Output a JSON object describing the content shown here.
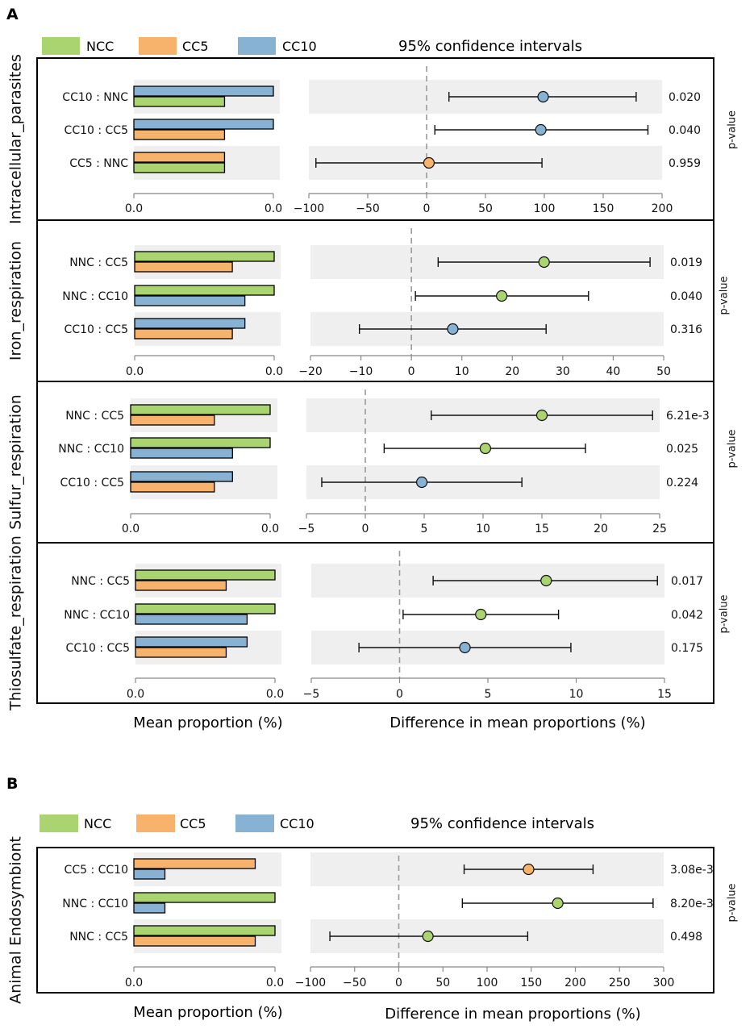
{
  "figure": {
    "panels": [
      {
        "label": "A",
        "ci_title": "95% confidence intervals",
        "xlabel_left": "Mean proportion (%)",
        "xlabel_right": "Difference in mean proportions (%)",
        "pvalue_label": "p-value"
      },
      {
        "label": "B",
        "ci_title": "95% confidence intervals",
        "xlabel_left": "Mean proportion (%)",
        "xlabel_right": "Difference in mean proportions (%)",
        "pvalue_label": "p-value"
      }
    ],
    "legend": [
      {
        "name": "NCC",
        "color": "#a9d46f"
      },
      {
        "name": "CC5",
        "color": "#f7b26b"
      },
      {
        "name": "CC10",
        "color": "#88b2d4"
      }
    ],
    "colors": {
      "NNC": "#a9d46f",
      "CC5": "#f7b26b",
      "CC10": "#88b2d4",
      "band": "#efefef",
      "zero_line": "#9a9a9a"
    }
  },
  "chart_data": [
    {
      "type": "bar+errorbar",
      "title": "Intracellular_parasites",
      "xlabel": "Difference in mean proportions (%)",
      "xlim": [
        -100,
        200
      ],
      "ticks": [
        "-100",
        "-50",
        "0",
        "50",
        "100",
        "150",
        "200"
      ],
      "bar_xticks": [
        "0.0",
        "0.0"
      ],
      "rows": [
        {
          "label": "CC10 : NNC",
          "g1": "CC10",
          "g2": "NNC",
          "bar1": 1.0,
          "bar2": 0.65,
          "diff": 99,
          "ci": [
            19,
            178
          ],
          "p": "0.020",
          "dot": "CC10",
          "band": true
        },
        {
          "label": "CC10 : CC5",
          "g1": "CC10",
          "g2": "CC5",
          "bar1": 1.0,
          "bar2": 0.65,
          "diff": 97,
          "ci": [
            7,
            188
          ],
          "p": "0.040",
          "dot": "CC10",
          "band": false
        },
        {
          "label": "CC5 : NNC",
          "g1": "CC5",
          "g2": "NNC",
          "bar1": 0.65,
          "bar2": 0.65,
          "diff": 2,
          "ci": [
            -94,
            98
          ],
          "p": "0.959",
          "dot": "CC5",
          "band": true
        }
      ]
    },
    {
      "type": "bar+errorbar",
      "title": "Iron_respiration",
      "xlabel": "Difference in mean proportions (%)",
      "xlim": [
        -20,
        50
      ],
      "ticks": [
        "-20",
        "-10",
        "0",
        "10",
        "20",
        "30",
        "40",
        "50"
      ],
      "bar_xticks": [
        "0.0",
        "0.0"
      ],
      "rows": [
        {
          "label": "NNC : CC5",
          "g1": "NNC",
          "g2": "CC5",
          "bar1": 1.0,
          "bar2": 0.7,
          "diff": 26.3,
          "ci": [
            5.3,
            47.3
          ],
          "p": "0.019",
          "dot": "NNC",
          "band": true
        },
        {
          "label": "NNC : CC10",
          "g1": "NNC",
          "g2": "CC10",
          "bar1": 1.0,
          "bar2": 0.79,
          "diff": 17.9,
          "ci": [
            0.8,
            35.1
          ],
          "p": "0.040",
          "dot": "NNC",
          "band": false
        },
        {
          "label": "CC10 : CC5",
          "g1": "CC10",
          "g2": "CC5",
          "bar1": 0.79,
          "bar2": 0.7,
          "diff": 8.2,
          "ci": [
            -10.3,
            26.7
          ],
          "p": "0.316",
          "dot": "CC10",
          "band": true
        }
      ]
    },
    {
      "type": "bar+errorbar",
      "title": "Sulfur_respiration",
      "xlabel": "Difference in mean proportions (%)",
      "xlim": [
        -5,
        25
      ],
      "ticks": [
        "-5",
        "0",
        "5",
        "10",
        "15",
        "20",
        "25"
      ],
      "bar_xticks": [
        "0.0",
        "0.0"
      ],
      "rows": [
        {
          "label": "NNC : CC5",
          "g1": "NNC",
          "g2": "CC5",
          "bar1": 1.0,
          "bar2": 0.6,
          "diff": 15.0,
          "ci": [
            5.6,
            24.4
          ],
          "p": "6.21e-3",
          "dot": "NNC",
          "band": true
        },
        {
          "label": "NNC : CC10",
          "g1": "NNC",
          "g2": "CC10",
          "bar1": 1.0,
          "bar2": 0.73,
          "diff": 10.2,
          "ci": [
            1.6,
            18.7
          ],
          "p": "0.025",
          "dot": "NNC",
          "band": false
        },
        {
          "label": "CC10 : CC5",
          "g1": "CC10",
          "g2": "CC5",
          "bar1": 0.73,
          "bar2": 0.6,
          "diff": 4.8,
          "ci": [
            -3.7,
            13.3
          ],
          "p": "0.224",
          "dot": "CC10",
          "band": true
        }
      ]
    },
    {
      "type": "bar+errorbar",
      "title": "Thiosulfate_respiration",
      "xlabel": "Difference in mean proportions (%)",
      "xlim": [
        -5,
        15
      ],
      "ticks": [
        "-5",
        "0",
        "5",
        "10",
        "15"
      ],
      "bar_xticks": [
        "0.0",
        "0.0"
      ],
      "rows": [
        {
          "label": "NNC : CC5",
          "g1": "NNC",
          "g2": "CC5",
          "bar1": 1.0,
          "bar2": 0.65,
          "diff": 8.3,
          "ci": [
            1.9,
            14.6
          ],
          "p": "0.017",
          "dot": "NNC",
          "band": true
        },
        {
          "label": "NNC : CC10",
          "g1": "NNC",
          "g2": "CC10",
          "bar1": 1.0,
          "bar2": 0.8,
          "diff": 4.6,
          "ci": [
            0.2,
            9.0
          ],
          "p": "0.042",
          "dot": "NNC",
          "band": false
        },
        {
          "label": "CC10 : CC5",
          "g1": "CC10",
          "g2": "CC5",
          "bar1": 0.8,
          "bar2": 0.65,
          "diff": 3.7,
          "ci": [
            -2.3,
            9.7
          ],
          "p": "0.175",
          "dot": "CC10",
          "band": true
        }
      ]
    },
    {
      "type": "bar+errorbar",
      "title": "Animal Endosymbiont",
      "xlabel": "Difference in mean proportions (%)",
      "xlim": [
        -100,
        300
      ],
      "ticks": [
        "-100",
        "-50",
        "0",
        "50",
        "100",
        "150",
        "200",
        "250",
        "300"
      ],
      "bar_xticks": [
        "0.0",
        "0.0"
      ],
      "rows": [
        {
          "label": "CC5 : CC10",
          "g1": "CC5",
          "g2": "CC10",
          "bar1": 0.86,
          "bar2": 0.22,
          "diff": 147,
          "ci": [
            74,
            220
          ],
          "p": "3.08e-3",
          "dot": "CC5",
          "band": true
        },
        {
          "label": "NNC : CC10",
          "g1": "NNC",
          "g2": "CC10",
          "bar1": 1.0,
          "bar2": 0.22,
          "diff": 180,
          "ci": [
            72,
            288
          ],
          "p": "8.20e-3",
          "dot": "NNC",
          "band": false
        },
        {
          "label": "NNC : CC5",
          "g1": "NNC",
          "g2": "CC5",
          "bar1": 1.0,
          "bar2": 0.86,
          "diff": 33,
          "ci": [
            -78,
            146
          ],
          "p": "0.498",
          "dot": "NNC",
          "band": true
        }
      ]
    }
  ]
}
